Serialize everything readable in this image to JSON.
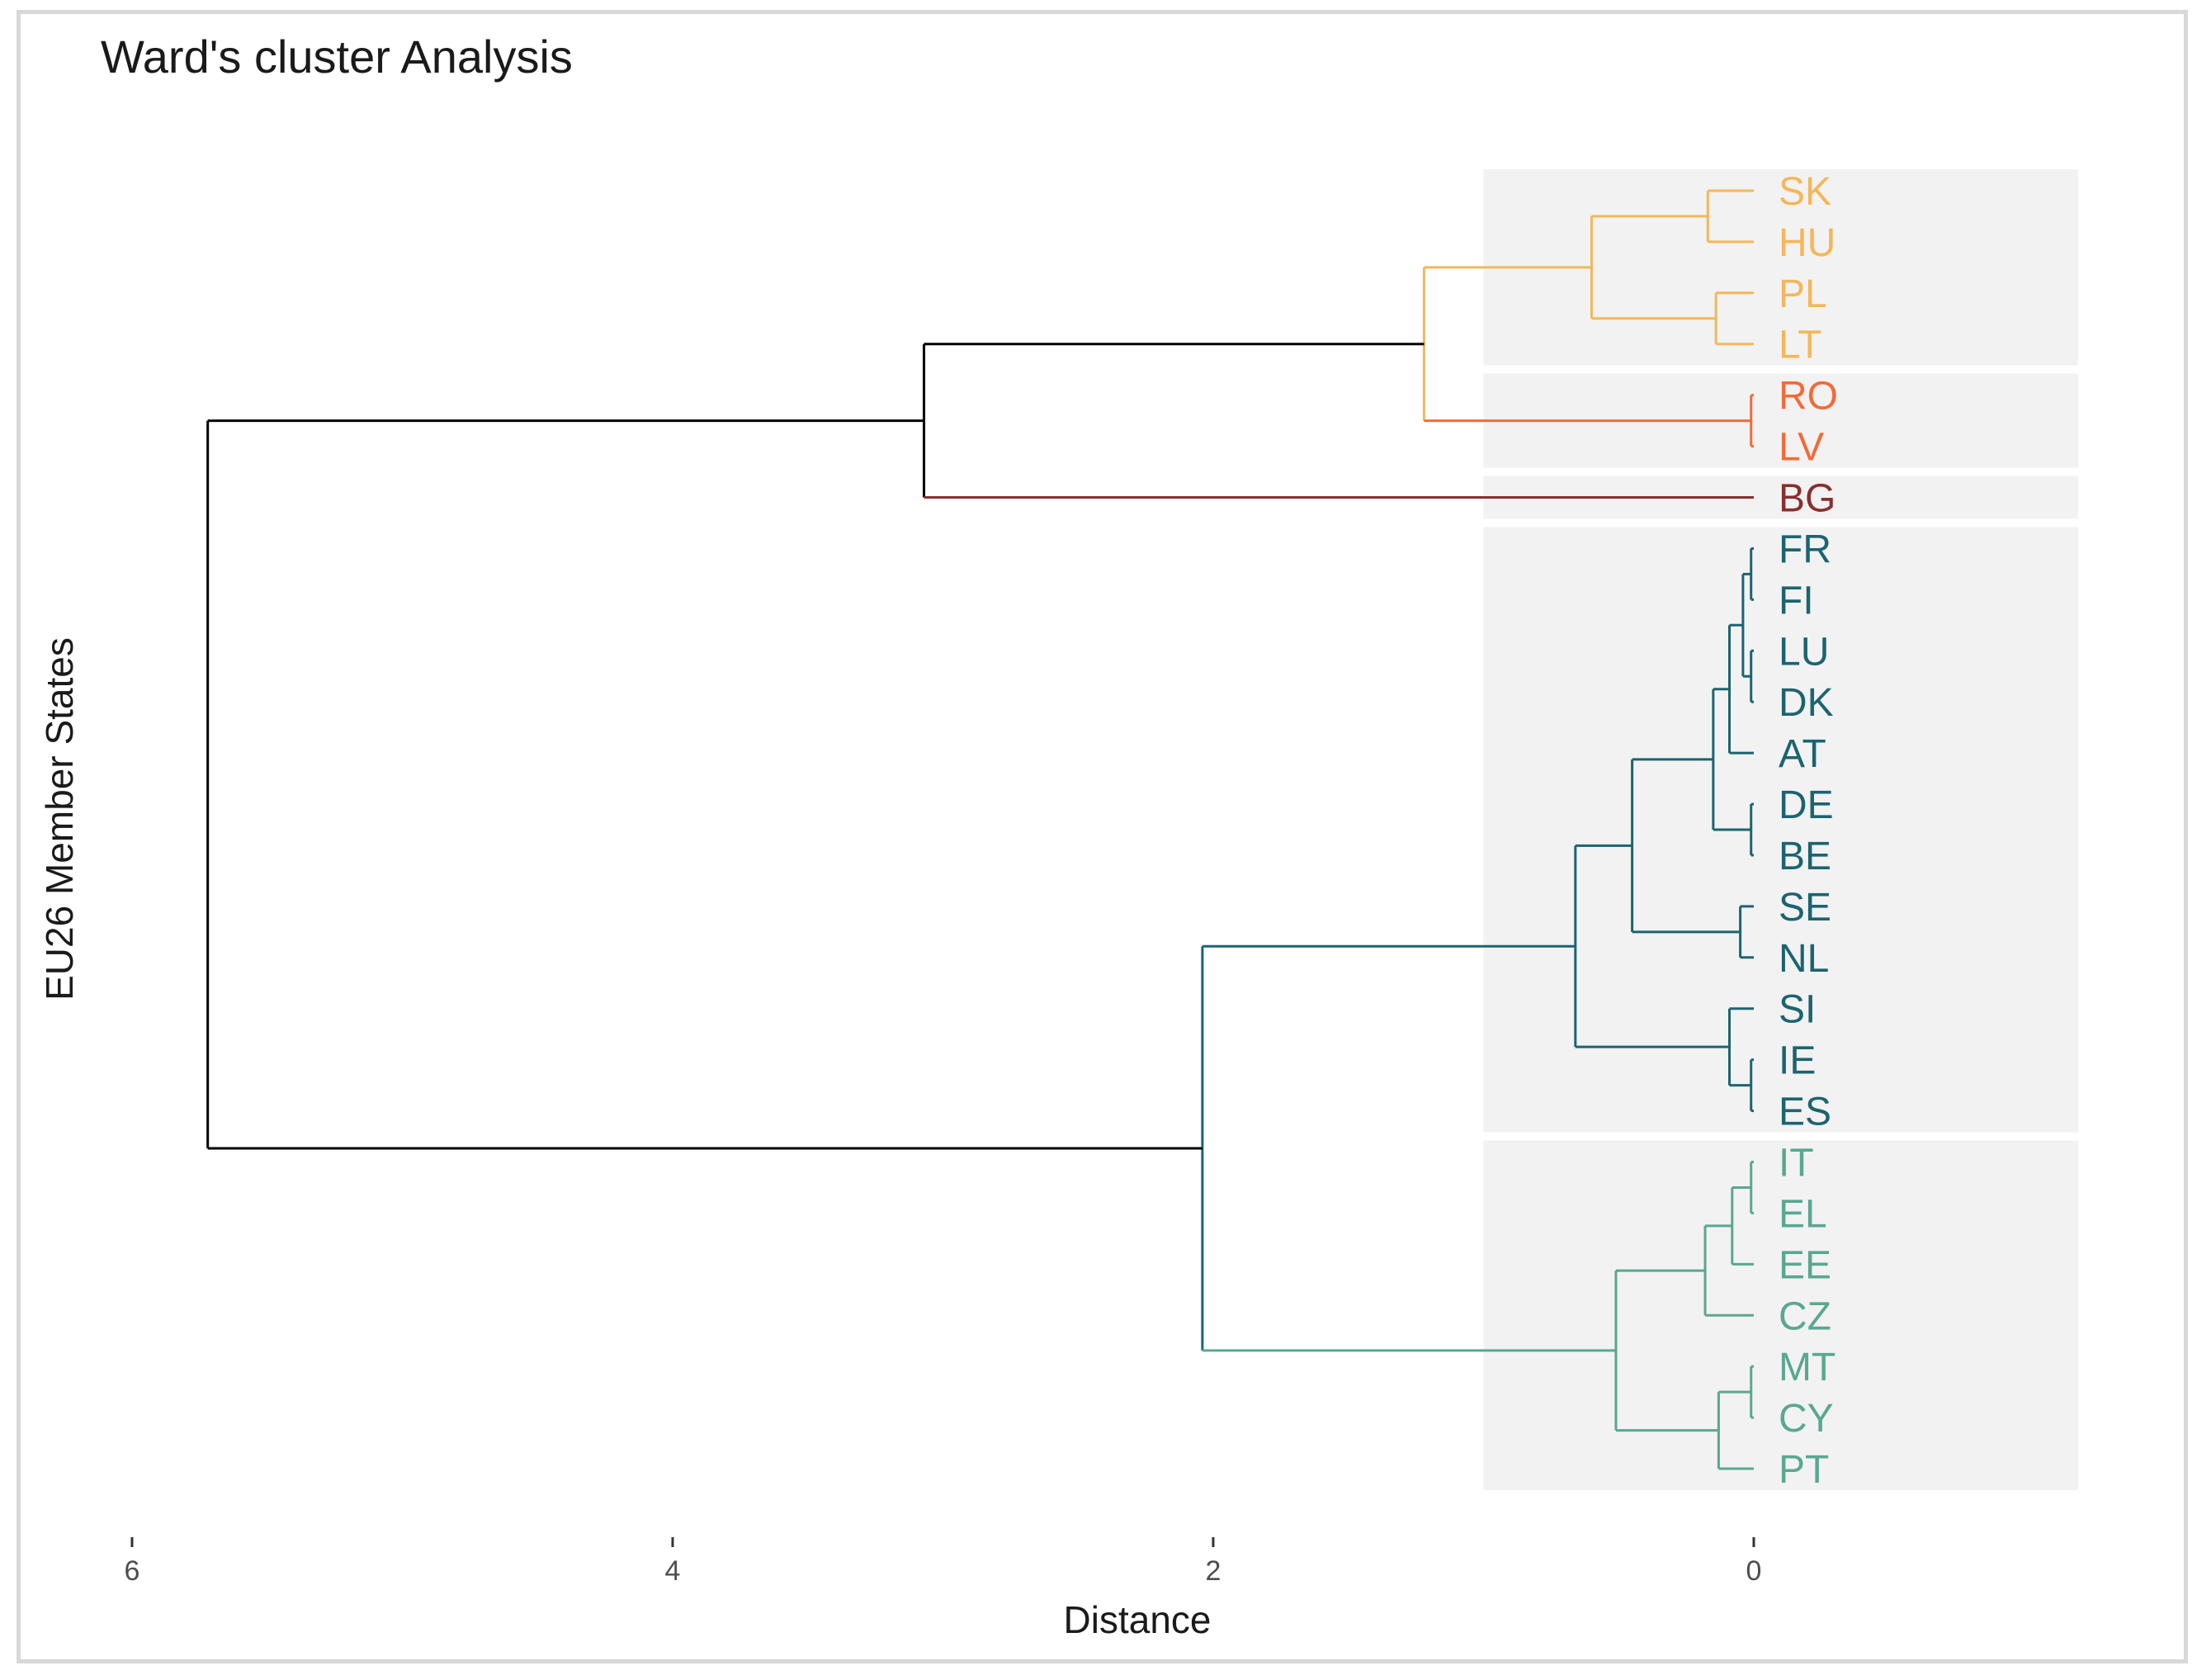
{
  "chart_data": {
    "type": "dendrogram",
    "title": "Ward's cluster Analysis",
    "xlabel": "Distance",
    "ylabel": "EU26 Member States",
    "xlim": [
      6,
      0
    ],
    "xticks": [
      "6",
      "4",
      "2",
      "0"
    ],
    "xtick_values": [
      6,
      4,
      2,
      0
    ],
    "leaf_range": [
      0.5,
      26.5
    ],
    "leaves": [
      {
        "label": "SK",
        "cluster": 0
      },
      {
        "label": "HU",
        "cluster": 0
      },
      {
        "label": "PL",
        "cluster": 0
      },
      {
        "label": "LT",
        "cluster": 0
      },
      {
        "label": "RO",
        "cluster": 1
      },
      {
        "label": "LV",
        "cluster": 1
      },
      {
        "label": "BG",
        "cluster": 2
      },
      {
        "label": "FR",
        "cluster": 3
      },
      {
        "label": "FI",
        "cluster": 3
      },
      {
        "label": "LU",
        "cluster": 3
      },
      {
        "label": "DK",
        "cluster": 3
      },
      {
        "label": "AT",
        "cluster": 3
      },
      {
        "label": "DE",
        "cluster": 3
      },
      {
        "label": "BE",
        "cluster": 3
      },
      {
        "label": "SE",
        "cluster": 3
      },
      {
        "label": "NL",
        "cluster": 3
      },
      {
        "label": "SI",
        "cluster": 3
      },
      {
        "label": "IE",
        "cluster": 3
      },
      {
        "label": "ES",
        "cluster": 3
      },
      {
        "label": "IT",
        "cluster": 4
      },
      {
        "label": "EL",
        "cluster": 4
      },
      {
        "label": "EE",
        "cluster": 4
      },
      {
        "label": "CZ",
        "cluster": 4
      },
      {
        "label": "MT",
        "cluster": 4
      },
      {
        "label": "CY",
        "cluster": 4
      },
      {
        "label": "PT",
        "cluster": 4
      }
    ],
    "clusters": [
      {
        "id": 0,
        "color": "#f5b75a",
        "members": [
          "SK",
          "HU",
          "PL",
          "LT"
        ]
      },
      {
        "id": 1,
        "color": "#f26b38",
        "members": [
          "RO",
          "LV"
        ]
      },
      {
        "id": 2,
        "color": "#8b2e2e",
        "members": [
          "BG"
        ]
      },
      {
        "id": 3,
        "color": "#1b6470",
        "members": [
          "FR",
          "FI",
          "LU",
          "DK",
          "AT",
          "DE",
          "BE",
          "SE",
          "NL",
          "SI",
          "IE",
          "ES"
        ]
      },
      {
        "id": 4,
        "color": "#5aa792",
        "members": [
          "IT",
          "EL",
          "EE",
          "CZ",
          "MT",
          "CY",
          "PT"
        ]
      }
    ],
    "merges": [
      {
        "id": "m1",
        "children": [
          "SK",
          "HU"
        ],
        "height": 0.17,
        "color": "#f5b75a"
      },
      {
        "id": "m2",
        "children": [
          "PL",
          "LT"
        ],
        "height": 0.14,
        "color": "#f5b75a"
      },
      {
        "id": "m3",
        "children": [
          "m1",
          "m2"
        ],
        "height": 0.6,
        "color": "#f5b75a"
      },
      {
        "id": "m4",
        "children": [
          "RO",
          "LV"
        ],
        "height": 0.01,
        "color": "#f26b38"
      },
      {
        "id": "m5",
        "children": [
          "m3",
          "m4"
        ],
        "height": 1.22,
        "color": "#f5b75a"
      },
      {
        "id": "m6",
        "children": [
          "m5",
          "BG"
        ],
        "height": 3.07,
        "color": "#000000"
      },
      {
        "id": "m7",
        "children": [
          "FR",
          "FI"
        ],
        "height": 0.01,
        "color": "#1b6470"
      },
      {
        "id": "m8",
        "children": [
          "LU",
          "DK"
        ],
        "height": 0.01,
        "color": "#1b6470"
      },
      {
        "id": "m9",
        "children": [
          "m7",
          "m8"
        ],
        "height": 0.04,
        "color": "#1b6470"
      },
      {
        "id": "m10",
        "children": [
          "m9",
          "AT"
        ],
        "height": 0.09,
        "color": "#1b6470"
      },
      {
        "id": "m11",
        "children": [
          "DE",
          "BE"
        ],
        "height": 0.01,
        "color": "#1b6470"
      },
      {
        "id": "m12",
        "children": [
          "m10",
          "m11"
        ],
        "height": 0.15,
        "color": "#1b6470"
      },
      {
        "id": "m13",
        "children": [
          "SE",
          "NL"
        ],
        "height": 0.05,
        "color": "#1b6470"
      },
      {
        "id": "m14",
        "children": [
          "m12",
          "m13"
        ],
        "height": 0.45,
        "color": "#1b6470"
      },
      {
        "id": "m15",
        "children": [
          "IE",
          "ES"
        ],
        "height": 0.01,
        "color": "#1b6470"
      },
      {
        "id": "m16",
        "children": [
          "SI",
          "m15"
        ],
        "height": 0.09,
        "color": "#1b6470"
      },
      {
        "id": "m17",
        "children": [
          "m14",
          "m16"
        ],
        "height": 0.66,
        "color": "#1b6470"
      },
      {
        "id": "m18",
        "children": [
          "IT",
          "EL"
        ],
        "height": 0.01,
        "color": "#5aa792"
      },
      {
        "id": "m19",
        "children": [
          "m18",
          "EE"
        ],
        "height": 0.08,
        "color": "#5aa792"
      },
      {
        "id": "m20",
        "children": [
          "m19",
          "CZ"
        ],
        "height": 0.18,
        "color": "#5aa792"
      },
      {
        "id": "m21",
        "children": [
          "MT",
          "CY"
        ],
        "height": 0.01,
        "color": "#5aa792"
      },
      {
        "id": "m22",
        "children": [
          "m21",
          "PT"
        ],
        "height": 0.13,
        "color": "#5aa792"
      },
      {
        "id": "m23",
        "children": [
          "m20",
          "m22"
        ],
        "height": 0.51,
        "color": "#5aa792"
      },
      {
        "id": "m24",
        "children": [
          "m17",
          "m23"
        ],
        "height": 2.04,
        "color": "#1b6470"
      },
      {
        "id": "m25",
        "children": [
          "m6",
          "m24"
        ],
        "height": 5.72,
        "color": "#000000"
      }
    ],
    "link_colors": {
      "m24_to_m23": "#5aa792",
      "m5_to_m4": "#f26b38",
      "m6_to_BG": "#8b2e2e"
    },
    "cluster_rect_color": "#f2f2f2",
    "legend": "none",
    "grid": false
  }
}
